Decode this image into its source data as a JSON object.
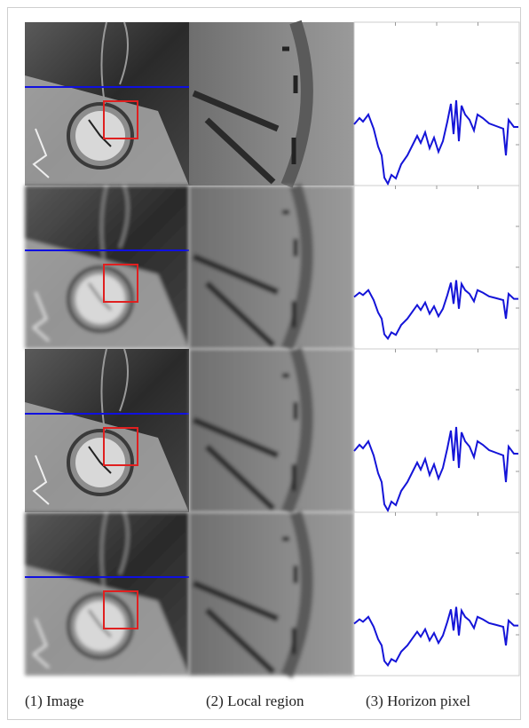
{
  "figure": {
    "captions": [
      "(1) Image",
      "(2) Local region",
      "(3) Horizon pixel"
    ]
  }
}
